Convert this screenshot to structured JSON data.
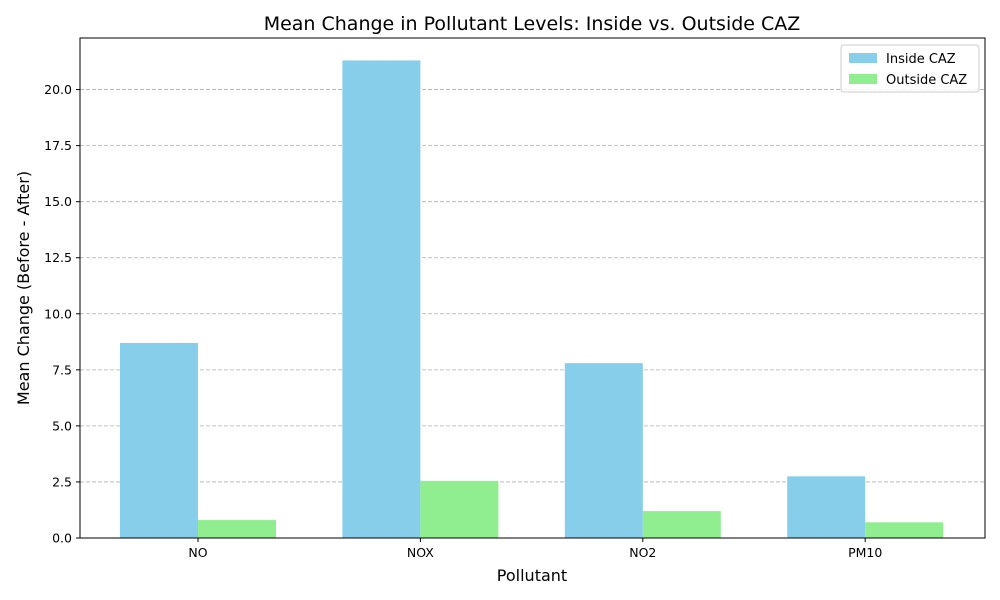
{
  "chart_data": {
    "type": "bar",
    "title": "Mean Change in Pollutant Levels: Inside vs. Outside CAZ",
    "xlabel": "Pollutant",
    "ylabel": "Mean Change (Before - After)",
    "categories": [
      "NO",
      "NOX",
      "NO2",
      "PM10"
    ],
    "series": [
      {
        "name": "Inside CAZ",
        "color": "#87ceeb",
        "values": [
          8.7,
          21.3,
          7.8,
          2.75
        ]
      },
      {
        "name": "Outside CAZ",
        "color": "#90ee90",
        "values": [
          0.8,
          2.55,
          1.2,
          0.7
        ]
      }
    ],
    "ylim": [
      0,
      22.3
    ],
    "yticks": [
      0.0,
      2.5,
      5.0,
      7.5,
      10.0,
      12.5,
      15.0,
      17.5,
      20.0
    ],
    "ytick_labels": [
      "0.0",
      "2.5",
      "5.0",
      "7.5",
      "10.0",
      "12.5",
      "15.0",
      "17.5",
      "20.0"
    ],
    "grid": "y-dashed",
    "legend_position": "top-right"
  }
}
